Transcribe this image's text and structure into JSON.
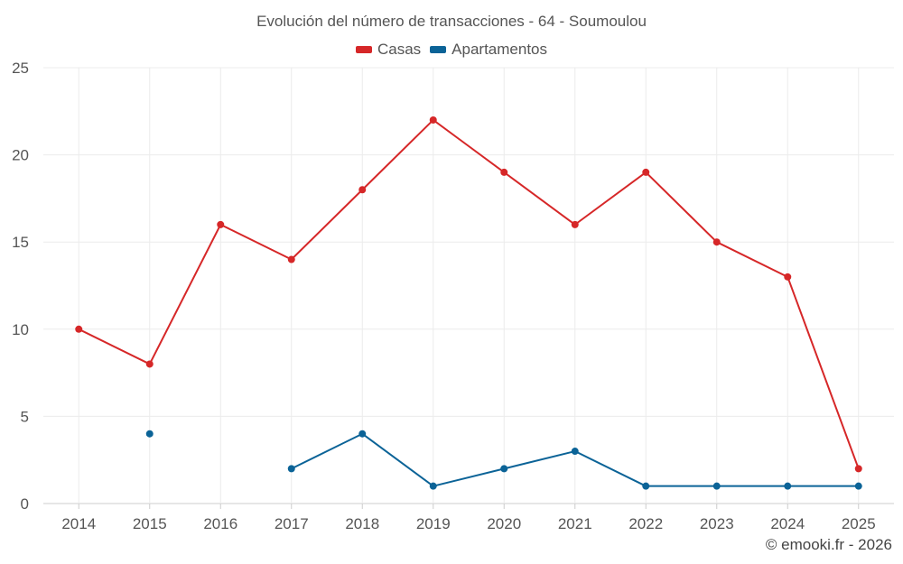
{
  "chart_data": {
    "type": "line",
    "title": "Evolución del número de transacciones - 64 - Soumoulou",
    "categories": [
      "2014",
      "2015",
      "2016",
      "2017",
      "2018",
      "2019",
      "2020",
      "2021",
      "2022",
      "2023",
      "2024",
      "2025"
    ],
    "series": [
      {
        "name": "Casas",
        "color": "#d62728",
        "values": [
          10,
          8,
          16,
          14,
          18,
          22,
          19,
          16,
          19,
          15,
          13,
          2
        ]
      },
      {
        "name": "Apartamentos",
        "color": "#0b6397",
        "values": [
          null,
          4,
          null,
          2,
          4,
          1,
          2,
          3,
          1,
          1,
          1,
          1
        ]
      }
    ],
    "ylim": [
      0,
      25
    ],
    "yticks": [
      0,
      5,
      10,
      15,
      20,
      25
    ],
    "xlabel": "",
    "ylabel": "",
    "grid": true,
    "legend_position": "top-center"
  },
  "credit": "© emooki.fr - 2026"
}
